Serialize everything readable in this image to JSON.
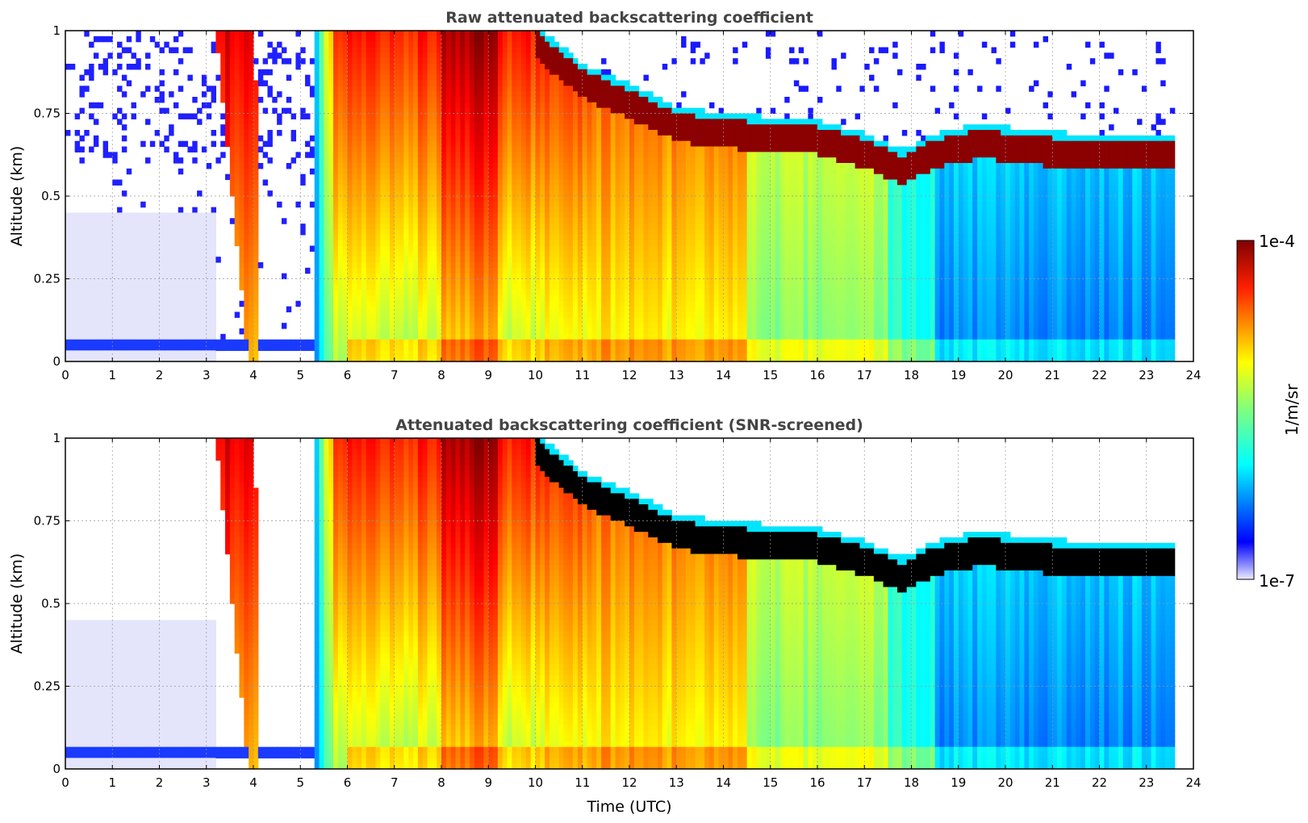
{
  "chart_data": [
    {
      "type": "heatmap",
      "title": "Raw attenuated backscattering coefficient",
      "xlabel": "",
      "ylabel": "Altitude (km)",
      "xlim": [
        0,
        24
      ],
      "ylim": [
        0,
        1
      ],
      "xticks": [
        "0",
        "1",
        "2",
        "3",
        "4",
        "5",
        "6",
        "7",
        "8",
        "9",
        "10",
        "11",
        "12",
        "13",
        "14",
        "15",
        "16",
        "17",
        "18",
        "19",
        "20",
        "21",
        "22",
        "23",
        "24"
      ],
      "yticks": [
        "0",
        "0.25",
        "0.5",
        "0.75",
        "1"
      ],
      "grid": true,
      "cloud_top_km": [
        [
          10,
          1.0
        ],
        [
          11,
          0.88
        ],
        [
          12,
          0.82
        ],
        [
          13,
          0.75
        ],
        [
          14,
          0.73
        ],
        [
          15,
          0.72
        ],
        [
          16,
          0.71
        ],
        [
          17,
          0.67
        ],
        [
          17.8,
          0.62
        ],
        [
          18.5,
          0.67
        ],
        [
          19.5,
          0.7
        ],
        [
          20.5,
          0.68
        ],
        [
          21.5,
          0.67
        ],
        [
          22.5,
          0.67
        ],
        [
          23.55,
          0.66
        ]
      ],
      "data_end_hour": 23.55
    },
    {
      "type": "heatmap",
      "title": "Attenuated backscattering coefficient (SNR-screened)",
      "xlabel": "Time (UTC)",
      "ylabel": "Altitude (km)",
      "xlim": [
        0,
        24
      ],
      "ylim": [
        0,
        1
      ],
      "xticks": [
        "0",
        "1",
        "2",
        "3",
        "4",
        "5",
        "6",
        "7",
        "8",
        "9",
        "10",
        "11",
        "12",
        "13",
        "14",
        "15",
        "16",
        "17",
        "18",
        "19",
        "20",
        "21",
        "22",
        "23",
        "24"
      ],
      "yticks": [
        "0",
        "0.25",
        "0.5",
        "0.75",
        "1"
      ],
      "grid": true,
      "data_end_hour": 23.55
    }
  ],
  "colorbar": {
    "max_label": "1e-4",
    "min_label": "1e-7",
    "unit_label": "1/m/sr",
    "colormap": "jet"
  }
}
